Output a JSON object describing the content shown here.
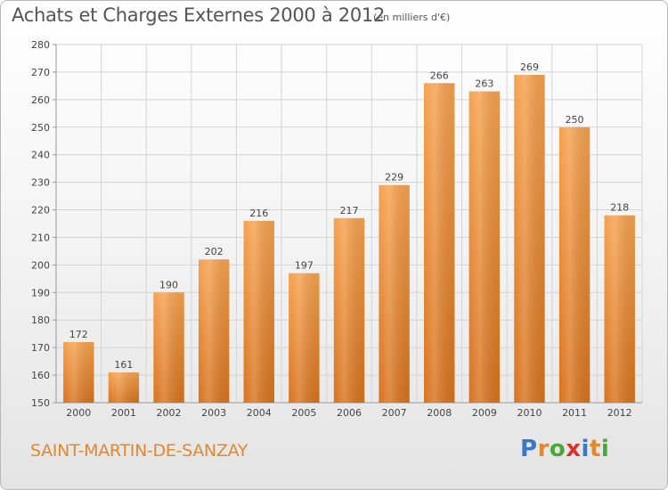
{
  "title": "Achats et Charges Externes 2000 à 2012",
  "unit_note": "(en milliers d'€)",
  "city": "SAINT-MARTIN-DE-SANZAY",
  "brand": {
    "text": "Proxiti",
    "letter_colors": [
      "#3a7ac4",
      "#e2892d",
      "#4aa83b",
      "#d9342b",
      "#3a7ac4",
      "#e2892d",
      "#4aa83b"
    ]
  },
  "colors": {
    "bar_top": "#f6a24f",
    "bar_bottom": "#d8731e",
    "grid": "#d4d4d4",
    "axis": "#999999",
    "text": "#444444"
  },
  "chart_data": {
    "type": "bar",
    "categories": [
      "2000",
      "2001",
      "2002",
      "2003",
      "2004",
      "2005",
      "2006",
      "2007",
      "2008",
      "2009",
      "2010",
      "2011",
      "2012"
    ],
    "values": [
      172,
      161,
      190,
      202,
      216,
      197,
      217,
      229,
      266,
      263,
      269,
      250,
      218
    ],
    "ylim": [
      150,
      280
    ],
    "yticks": [
      150,
      160,
      170,
      180,
      190,
      200,
      210,
      220,
      230,
      240,
      250,
      260,
      270,
      280
    ],
    "grid": true,
    "data_labels": true
  }
}
